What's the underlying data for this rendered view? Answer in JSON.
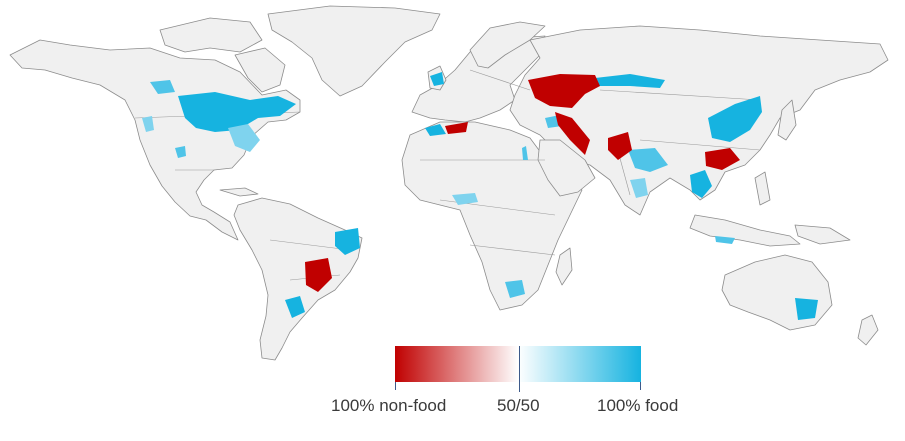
{
  "legend": {
    "left_label": "100% non-food",
    "mid_label": "50/50",
    "right_label": "100% food",
    "colors": {
      "non_food": "#c00000",
      "mid": "#ffffff",
      "food": "#16b3e0"
    }
  },
  "map": {
    "land_color": "#f0f0f0",
    "border_color": "#8c8c8c",
    "regions": [
      {
        "name": "US Midwest corn belt",
        "category": "food"
      },
      {
        "name": "Southeastern US",
        "category": "food"
      },
      {
        "name": "Pacific Northwest",
        "category": "food"
      },
      {
        "name": "UK",
        "category": "food"
      },
      {
        "name": "North Africa coast",
        "category": "non-food"
      },
      {
        "name": "Mediterranean coast",
        "category": "food"
      },
      {
        "name": "Ukraine / Kazakh steppe",
        "category": "non-food"
      },
      {
        "name": "Siberia south belt",
        "category": "food"
      },
      {
        "name": "Iran / Central Asia",
        "category": "non-food"
      },
      {
        "name": "Indus valley",
        "category": "non-food"
      },
      {
        "name": "Ganges plain",
        "category": "food"
      },
      {
        "name": "North China Plain",
        "category": "food"
      },
      {
        "name": "South China",
        "category": "non-food"
      },
      {
        "name": "Mekong",
        "category": "food"
      },
      {
        "name": "Southern Brazil",
        "category": "non-food"
      },
      {
        "name": "Eastern Brazil",
        "category": "food"
      },
      {
        "name": "Argentina Pampas",
        "category": "food"
      },
      {
        "name": "Nigeria",
        "category": "food"
      },
      {
        "name": "South Africa",
        "category": "food"
      },
      {
        "name": "SE Australia",
        "category": "food"
      },
      {
        "name": "Indonesia",
        "category": "food"
      }
    ]
  }
}
